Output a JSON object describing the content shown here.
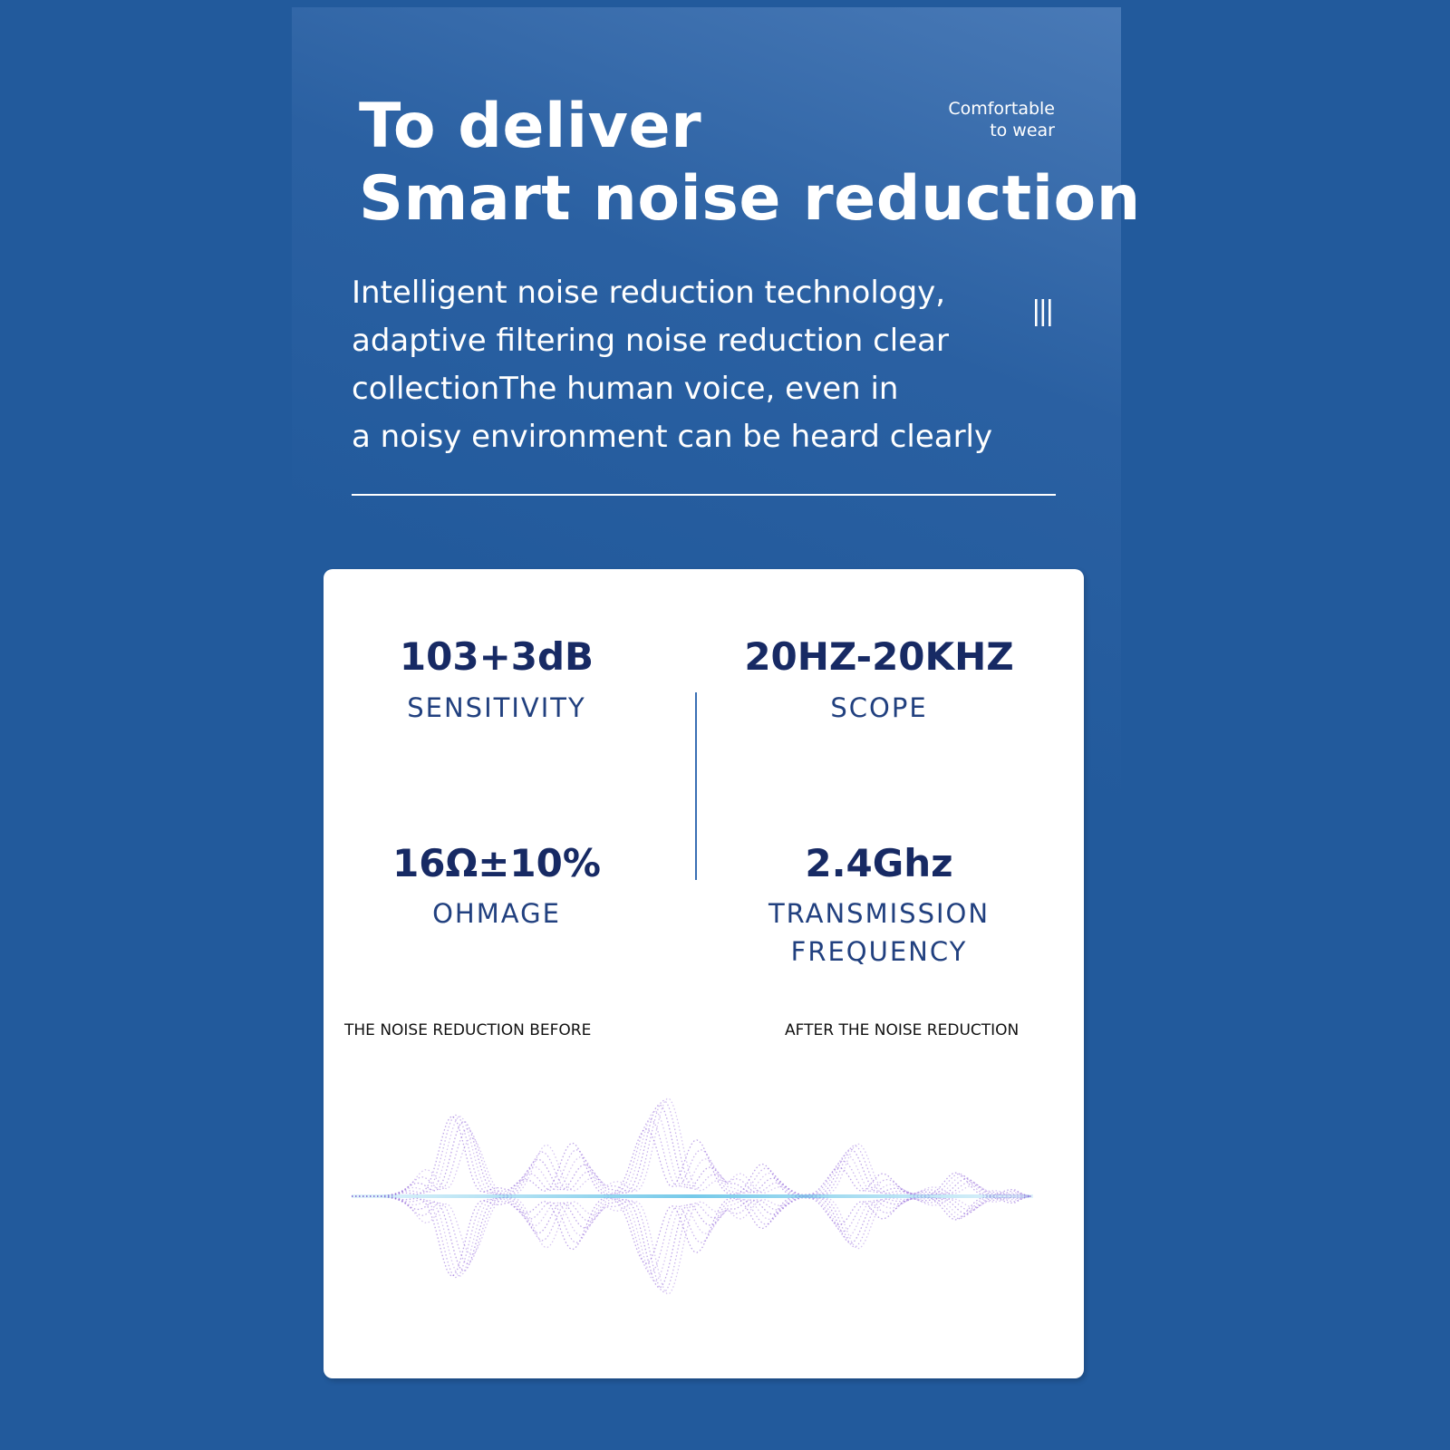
{
  "header": {
    "title_line1": "To deliver",
    "title_line2": "Smart noise reduction",
    "tagline_line1": "Comfortable",
    "tagline_line2": "to wear",
    "description_lines": [
      "Intelligent noise reduction technology,",
      "adaptive filtering noise reduction clear",
      "collectionThe human voice, even in",
      "a noisy environment can be heard clearly"
    ],
    "menu_icon": "three-vertical-bars-icon"
  },
  "specs": {
    "sensitivity": {
      "value": "103+3dB",
      "label": "SENSITIVITY"
    },
    "scope": {
      "value": "20HZ-20KHZ",
      "label": "SCOPE"
    },
    "ohmage": {
      "value": "16Ω±10%",
      "label": "OHMAGE"
    },
    "frequency": {
      "value": "2.4Ghz",
      "label_line1": "TRANSMISSION",
      "label_line2": "FREQUENCY"
    }
  },
  "noise_comparison": {
    "before_label": "THE NOISE REDUCTION BEFORE",
    "after_label": "AFTER THE NOISE REDUCTION",
    "wave_icon": "sound-wave-illustration"
  },
  "colors": {
    "background": "#225a9c",
    "card": "#ffffff",
    "value_text": "#172a64",
    "label_text": "#21407f",
    "wave_purple": "#8b5cd6",
    "wave_cyan": "#6fc7e8"
  }
}
